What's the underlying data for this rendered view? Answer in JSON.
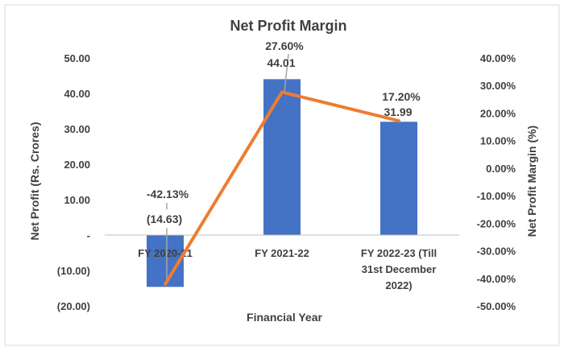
{
  "chart_data": {
    "type": "bar+line",
    "title": "Net Profit Margin",
    "xlabel": "Financial Year",
    "ylabel_left": "Net Profit (Rs. Crores)",
    "ylabel_right": "Net Profit Margin (%)",
    "categories": [
      [
        "FY 2020-21"
      ],
      [
        "FY 2021-22"
      ],
      [
        "FY 2022-23 (Till",
        "31st December",
        "2022)"
      ]
    ],
    "bar_series": {
      "values": [
        -14.63,
        44.01,
        31.99
      ],
      "labels": [
        "(14.63)",
        "44.01",
        "31.99"
      ],
      "color": "#4472C4"
    },
    "line_series": {
      "values": [
        -42.13,
        27.6,
        17.2
      ],
      "labels": [
        "-42.13%",
        "27.60%",
        "17.20%"
      ],
      "color": "#ED7D31"
    },
    "ylim_left": [
      -20,
      50
    ],
    "yticks_left": [
      {
        "value": 50,
        "label": "50.00"
      },
      {
        "value": 40,
        "label": "40.00"
      },
      {
        "value": 30,
        "label": "30.00"
      },
      {
        "value": 20,
        "label": "20.00"
      },
      {
        "value": 10,
        "label": "10.00"
      },
      {
        "value": 0,
        "label": "-"
      },
      {
        "value": -10,
        "label": "(10.00)"
      },
      {
        "value": -20,
        "label": "(20.00)"
      }
    ],
    "ylim_right": [
      -50,
      40
    ],
    "yticks_right": [
      {
        "value": 40,
        "label": "40.00%"
      },
      {
        "value": 30,
        "label": "30.00%"
      },
      {
        "value": 20,
        "label": "20.00%"
      },
      {
        "value": 10,
        "label": "10.00%"
      },
      {
        "value": 0,
        "label": "0.00%"
      },
      {
        "value": -10,
        "label": "-10.00%"
      },
      {
        "value": -20,
        "label": "-20.00%"
      },
      {
        "value": -30,
        "label": "-30.00%"
      },
      {
        "value": -40,
        "label": "-40.00%"
      },
      {
        "value": -50,
        "label": "-50.00%"
      }
    ],
    "leader_color": "#A6A6A6",
    "grid": false,
    "legend": "none"
  }
}
